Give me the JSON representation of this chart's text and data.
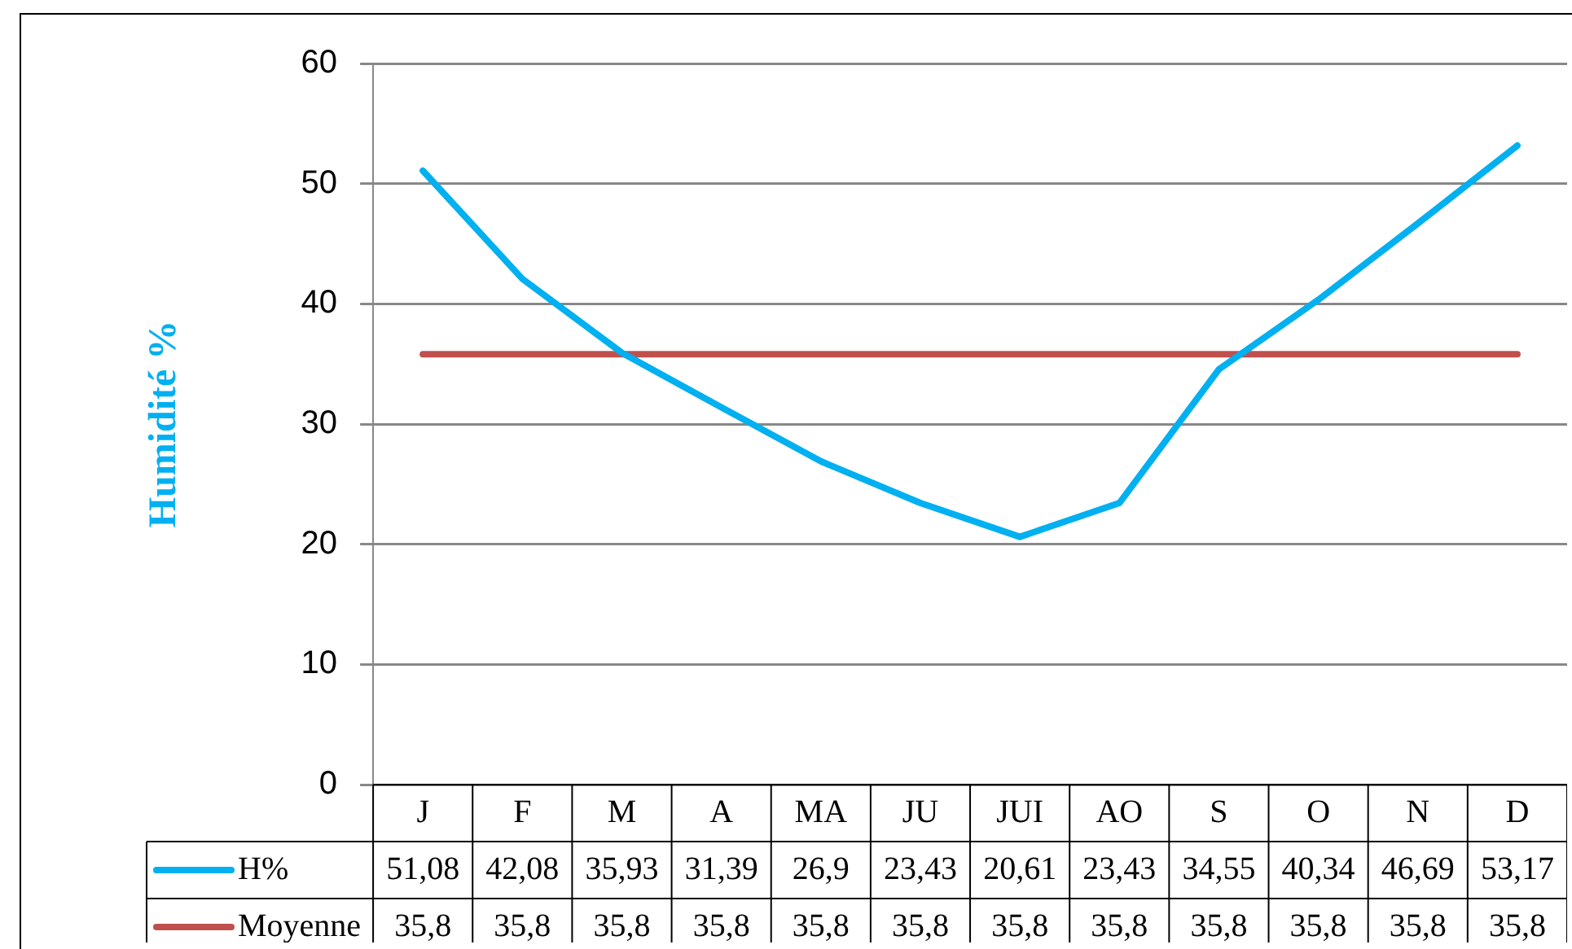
{
  "chart_data": {
    "type": "line",
    "ylabel": "Humidité %",
    "categories": [
      "J",
      "F",
      "M",
      "A",
      "MA",
      "JU",
      "JUI",
      "AO",
      "S",
      "O",
      "N",
      "D"
    ],
    "series": [
      {
        "name": "H%",
        "color": "#00b0f0",
        "values": [
          51.08,
          42.08,
          35.93,
          31.39,
          26.9,
          23.43,
          20.61,
          23.43,
          34.55,
          40.34,
          46.69,
          53.17
        ],
        "value_labels": [
          "51,08",
          "42,08",
          "35,93",
          "31,39",
          "26,9",
          "23,43",
          "20,61",
          "23,43",
          "34,55",
          "40,34",
          "46,69",
          "53,17"
        ]
      },
      {
        "name": "Moyenne",
        "color": "#c0504d",
        "values": [
          35.8,
          35.8,
          35.8,
          35.8,
          35.8,
          35.8,
          35.8,
          35.8,
          35.8,
          35.8,
          35.8,
          35.8
        ],
        "value_labels": [
          "35,8",
          "35,8",
          "35,8",
          "35,8",
          "35,8",
          "35,8",
          "35,8",
          "35,8",
          "35,8",
          "35,8",
          "35,8",
          "35,8"
        ]
      }
    ],
    "ylim": [
      0,
      60
    ],
    "yticks": [
      0,
      10,
      20,
      30,
      40,
      50,
      60
    ],
    "grid": "y",
    "legend": "bottom",
    "marker": "none",
    "line_style": "solid"
  }
}
